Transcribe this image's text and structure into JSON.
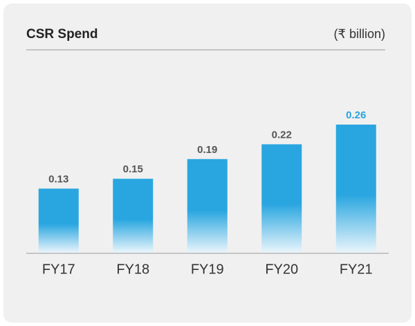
{
  "chart_data": {
    "type": "bar",
    "title": "CSR Spend",
    "subtitle": "(₹ billion)",
    "categories": [
      "FY17",
      "FY18",
      "FY19",
      "FY20",
      "FY21"
    ],
    "values": [
      0.13,
      0.15,
      0.19,
      0.22,
      0.26
    ],
    "color": "#29a6e0",
    "value_label_colors": [
      "#555555",
      "#555555",
      "#555555",
      "#555555",
      "#29a3dc"
    ]
  }
}
